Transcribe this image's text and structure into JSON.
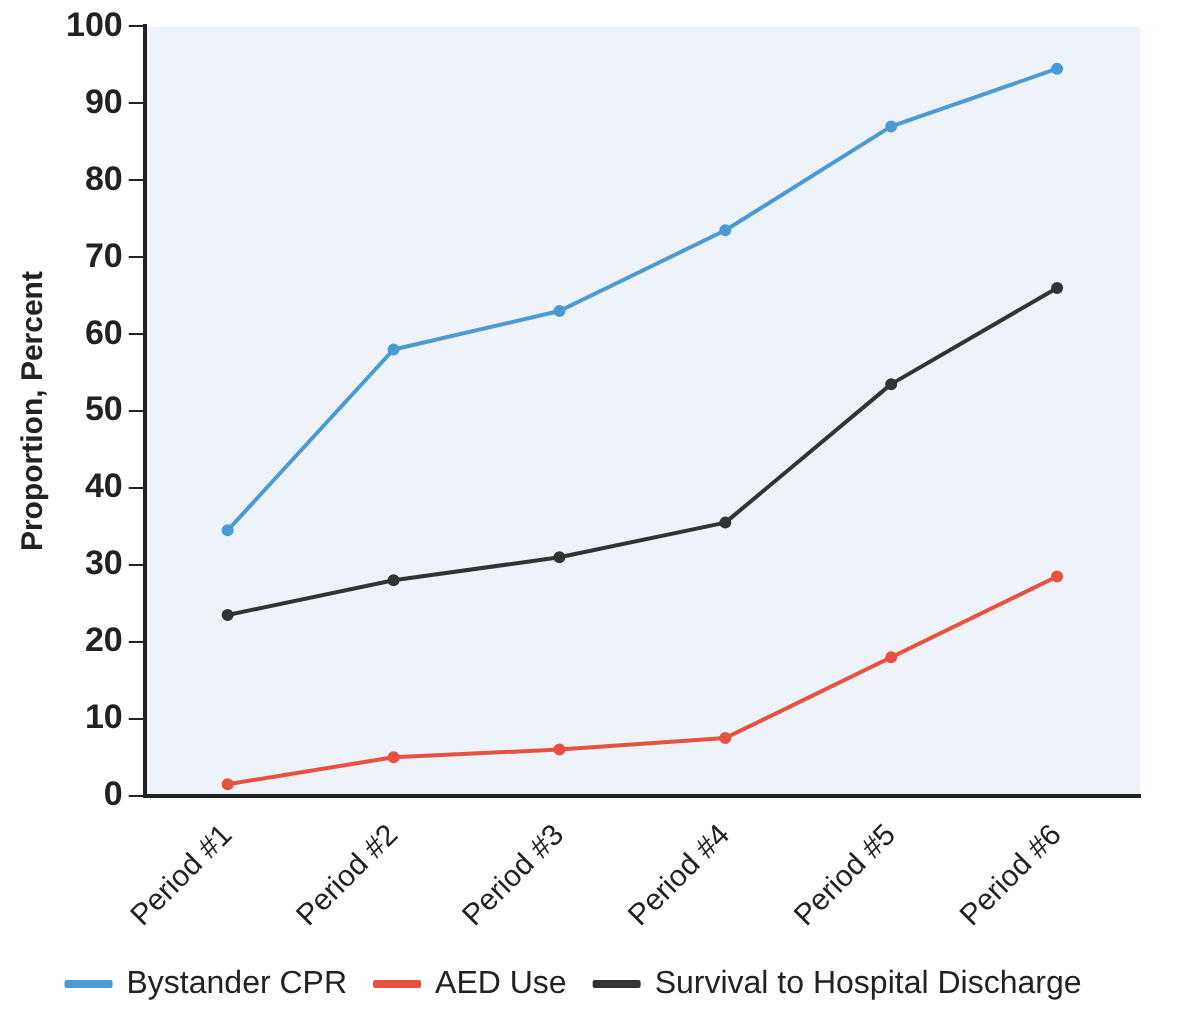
{
  "chart_data": {
    "type": "line",
    "ylabel": "Proportion, Percent",
    "categories": [
      "Period #1",
      "Period #2",
      "Period #3",
      "Period #4",
      "Period #5",
      "Period #6"
    ],
    "series": [
      {
        "name": "Bystander CPR",
        "color": "#4a9ad4",
        "values": [
          34.5,
          58,
          63,
          73.5,
          87,
          94.5
        ]
      },
      {
        "name": "AED Use",
        "color": "#e8503f",
        "values": [
          1.5,
          5,
          6,
          7.5,
          18,
          28.5
        ]
      },
      {
        "name": "Survival to Hospital Discharge",
        "color": "#333333",
        "values": [
          23.5,
          28,
          31,
          35.5,
          53.5,
          66
        ]
      }
    ],
    "ylim": [
      0,
      100
    ],
    "yticks": [
      0,
      10,
      20,
      30,
      40,
      50,
      60,
      70,
      80,
      90,
      100
    ],
    "grid": false,
    "legend": "bottom",
    "marker": "circle",
    "line_style": "solid"
  }
}
